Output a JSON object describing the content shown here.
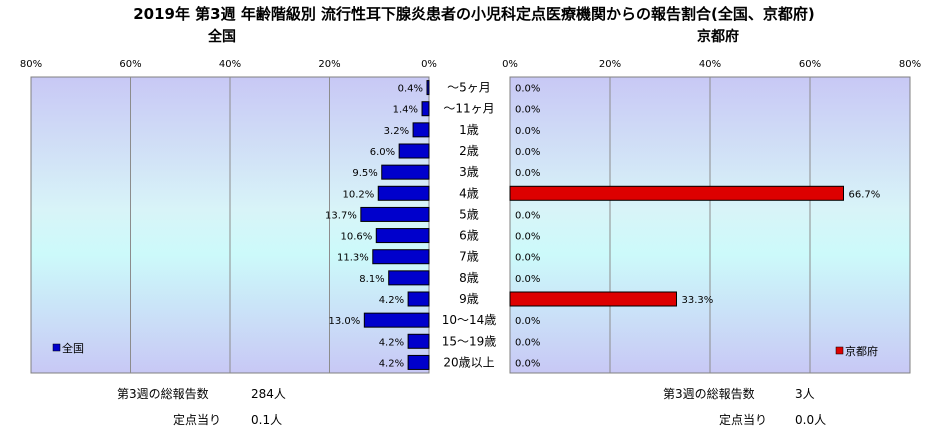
{
  "chart_data": {
    "type": "bar",
    "title": "2019年 第3週 年齢階級別 流行性耳下腺炎患者の小児科定点医療機関からの報告割合(全国、京都府)",
    "categories": [
      "～5ヶ月",
      "～11ヶ月",
      "1歳",
      "2歳",
      "3歳",
      "4歳",
      "5歳",
      "6歳",
      "7歳",
      "8歳",
      "9歳",
      "10～14歳",
      "15～19歳",
      "20歳以上"
    ],
    "xlim": [
      0,
      80
    ],
    "tick_labels": [
      "80%",
      "60%",
      "40%",
      "20%",
      "0%"
    ],
    "tick_labels_right": [
      "0%",
      "20%",
      "40%",
      "60%",
      "80%"
    ],
    "tick_values": [
      80,
      60,
      40,
      20,
      0
    ],
    "tick_values_right": [
      0,
      20,
      40,
      60,
      80
    ],
    "grid": true,
    "panels": [
      {
        "side": "left",
        "title": "全国",
        "series_name": "全国",
        "color": "#0000cc",
        "legend_position": "bottom-left",
        "values": [
          0.4,
          1.4,
          3.2,
          6.0,
          9.5,
          10.2,
          13.7,
          10.6,
          11.3,
          8.1,
          4.2,
          13.0,
          4.2,
          4.2
        ],
        "labels": [
          "0.4%",
          "1.4%",
          "3.2%",
          "6.0%",
          "9.5%",
          "10.2%",
          "13.7%",
          "10.6%",
          "11.3%",
          "8.1%",
          "4.2%",
          "13.0%",
          "4.2%",
          "4.2%"
        ]
      },
      {
        "side": "right",
        "title": "京都府",
        "series_name": "京都府",
        "color": "#dd0000",
        "legend_position": "bottom-right",
        "values": [
          0,
          0,
          0,
          0,
          0,
          66.7,
          0,
          0,
          0,
          0,
          33.3,
          0,
          0,
          0
        ],
        "labels": [
          "0.0%",
          "0.0%",
          "0.0%",
          "0.0%",
          "0.0%",
          "66.7%",
          "0.0%",
          "0.0%",
          "0.0%",
          "0.0%",
          "33.3%",
          "0.0%",
          "0.0%",
          "0.0%"
        ]
      }
    ]
  },
  "footer": {
    "left": {
      "total_label": "第3週の総報告数",
      "total_value": "284人",
      "per_site_label": "定点当り",
      "per_site_value": "0.1人"
    },
    "right": {
      "total_label": "第3週の総報告数",
      "total_value": "3人",
      "per_site_label": "定点当り",
      "per_site_value": "0.0人"
    }
  }
}
